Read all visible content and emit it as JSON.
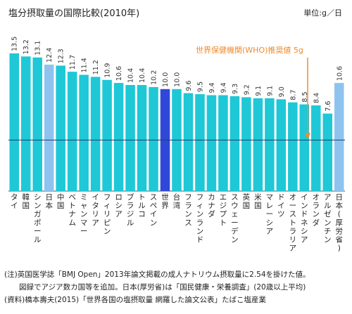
{
  "title": "塩分摂取量の国際比較(2010年)",
  "unit": "単位:g／日",
  "annotation": "世界保健機関(WHO)推奨値 5g",
  "notes": [
    "(注)英国医学誌「BMJ Open」2013年論文掲載の成人ナトリウム摂取量に2.54を掛けた値。",
    "　　図録でアジア数カ国等を追加。日本(厚労省)は「国民健康・栄養調査」(20歳以上平均)",
    "(資料)橋本壽夫(2015)「世界各国の塩摂取量 網羅した論文公表」たばこ塩産業"
  ],
  "colors": {
    "default": "#1ec8d6",
    "japan": "#8ec3ef",
    "world": "#2f48d8",
    "reference_line": "#1e3f6b",
    "arrow": "#f08a2c"
  },
  "chart_data": {
    "type": "bar",
    "title": "塩分摂取量の国際比較(2010年)",
    "unit": "g/日",
    "categories": [
      "タイ",
      "韓国",
      "シンガポール",
      "日本",
      "中国",
      "ベトナム",
      "ミャンマー",
      "イタリア",
      "フィリピン",
      "ロシア",
      "ブラジル",
      "トルコ",
      "スペイン",
      "世界",
      "台湾",
      "フランス",
      "フィンランド",
      "カナダ",
      "エジプト",
      "スウェーデン",
      "英国",
      "米国",
      "マレーシア",
      "ドイツ",
      "オーストラリア",
      "インドネシア",
      "オランダ",
      "アルゼンチン",
      "日本(厚労省)"
    ],
    "values": [
      13.5,
      13.2,
      13.1,
      12.4,
      12.3,
      11.7,
      11.4,
      11.2,
      10.9,
      10.6,
      10.4,
      10.4,
      10.2,
      10.0,
      10.0,
      9.6,
      9.5,
      9.4,
      9.4,
      9.3,
      9.2,
      9.1,
      9.1,
      9.0,
      8.7,
      8.5,
      8.4,
      7.6,
      10.6
    ],
    "value_labels": [
      "13.5",
      "13.2",
      "13.1",
      "12.4",
      "12.3",
      "11.7",
      "11.4",
      "11.2",
      "10.9",
      "10.6",
      "10.4",
      "10.4",
      "10.2",
      "10.0",
      "10.0",
      "9.6",
      "9.5",
      "9.4",
      "9.4",
      "9.3",
      "9.2",
      "9.1",
      "9.1",
      "9.0",
      "8.7",
      "8.5",
      "8.4",
      "7.6",
      "10.6"
    ],
    "highlight": {
      "日本": "japan",
      "日本(厚労省)": "japan",
      "世界": "world"
    },
    "reference_line": 5,
    "ylim": [
      0,
      14
    ]
  }
}
